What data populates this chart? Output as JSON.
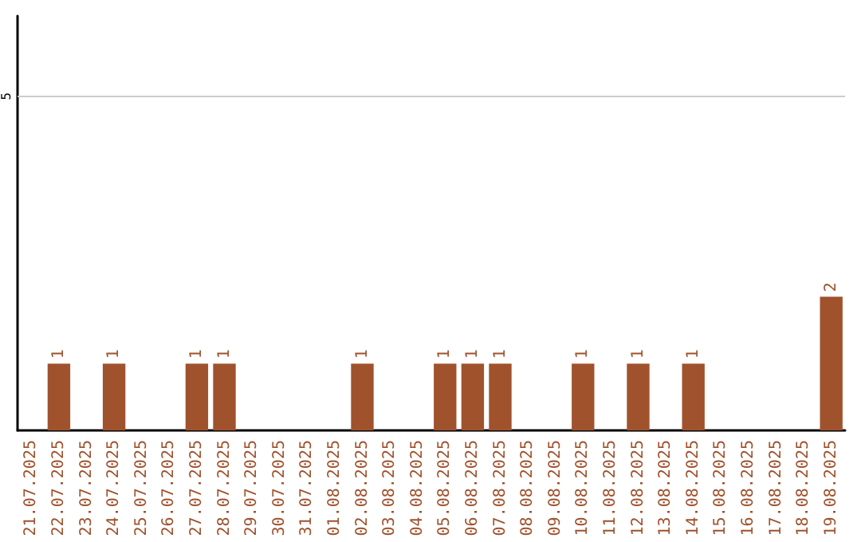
{
  "chart_data": {
    "type": "bar",
    "categories": [
      "21.07.2025",
      "22.07.2025",
      "23.07.2025",
      "24.07.2025",
      "25.07.2025",
      "26.07.2025",
      "27.07.2025",
      "28.07.2025",
      "29.07.2025",
      "30.07.2025",
      "31.07.2025",
      "01.08.2025",
      "02.08.2025",
      "03.08.2025",
      "04.08.2025",
      "05.08.2025",
      "06.08.2025",
      "07.08.2025",
      "08.08.2025",
      "09.08.2025",
      "10.08.2025",
      "11.08.2025",
      "12.08.2025",
      "13.08.2025",
      "14.08.2025",
      "15.08.2025",
      "16.08.2025",
      "17.08.2025",
      "18.08.2025",
      "19.08.2025"
    ],
    "values": [
      0,
      1,
      0,
      1,
      0,
      0,
      1,
      1,
      0,
      0,
      0,
      0,
      1,
      0,
      0,
      1,
      1,
      1,
      0,
      0,
      1,
      0,
      1,
      0,
      1,
      0,
      0,
      0,
      0,
      2
    ],
    "color": "#a0522d",
    "value_labels": [
      null,
      "1",
      null,
      "1",
      null,
      null,
      "1",
      "1",
      null,
      null,
      null,
      null,
      "1",
      null,
      null,
      "1",
      "1",
      "1",
      null,
      null,
      "1",
      null,
      "1",
      null,
      "1",
      null,
      null,
      null,
      null,
      "2"
    ],
    "ylim": [
      0,
      6.2
    ],
    "yticks": [
      5
    ],
    "grid": "y"
  }
}
